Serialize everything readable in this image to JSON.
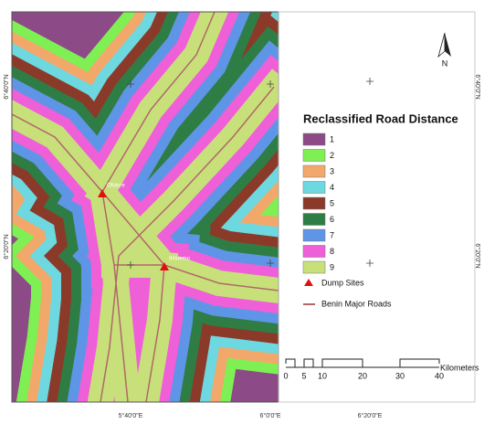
{
  "map": {
    "legend": {
      "title": "Reclassified Road Distance",
      "classes": [
        {
          "label": "1",
          "color": "#8c4a86"
        },
        {
          "label": "2",
          "color": "#7ef054"
        },
        {
          "label": "3",
          "color": "#f2a86a"
        },
        {
          "label": "4",
          "color": "#6ed8e0"
        },
        {
          "label": "5",
          "color": "#8b3a2a"
        },
        {
          "label": "6",
          "color": "#2e7d45"
        },
        {
          "label": "7",
          "color": "#5f95e6"
        },
        {
          "label": "8",
          "color": "#ee5fd8"
        },
        {
          "label": "9",
          "color": "#c8e07a"
        }
      ],
      "dump_sites": "Dump Sites",
      "roads": "Benin Major Roads"
    },
    "scale_bar": {
      "labels": [
        "0",
        "5",
        "10",
        "20",
        "30",
        "40"
      ],
      "unit": "Kilometers"
    },
    "north": "N",
    "sites": [
      {
        "label": "Ofolure"
      },
      {
        "label": "Ikhuemo"
      }
    ],
    "x_labels_bottom": [
      "5°40'0\"E",
      "6°0'0\"E",
      "6°20'0\"E"
    ],
    "y_labels_left": [
      "6°40'0\"N",
      "6°20'0\"N"
    ],
    "y_labels_right": [
      "6°40'0\"N",
      "6°20'0\"N"
    ]
  }
}
